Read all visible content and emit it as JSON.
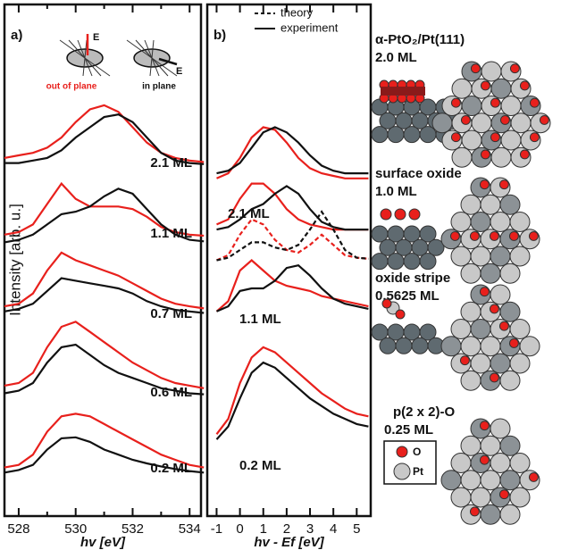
{
  "y_label": "Intensity [arb. u.]",
  "chart_data": [
    {
      "type": "line",
      "panel_label": "a)",
      "x_label": "hv [eV]",
      "x": [
        527.5,
        528,
        528.5,
        529,
        529.5,
        530,
        530.5,
        531,
        531.5,
        532,
        532.5,
        533,
        533.5,
        534,
        534.5
      ],
      "xlim": [
        527.5,
        534.4
      ],
      "ylim": [
        0,
        100
      ],
      "xticks": [
        528,
        530,
        532,
        534
      ],
      "xminorticks": [
        529,
        531,
        533
      ],
      "inset": {
        "field_label": "E",
        "out_of_plane": "out of plane",
        "in_plane": "in plane"
      },
      "annotations": [
        "2.1 ML",
        "1.1 ML",
        "0.7 ML",
        "0.6 ML",
        "0.2 ML"
      ],
      "series": [
        {
          "color": "#e8201c",
          "values": [
            70,
            70.5,
            71,
            72,
            74,
            77,
            79.5,
            80.3,
            79,
            76,
            73,
            71,
            70,
            69.5,
            69.2
          ]
        },
        {
          "color": "#111111",
          "values": [
            69,
            69,
            69.5,
            70,
            71.5,
            74,
            76,
            78,
            78.5,
            77,
            74,
            71,
            69.5,
            69,
            68.8
          ]
        },
        {
          "color": "#e8201c",
          "values": [
            55,
            55.5,
            57,
            61,
            65,
            62,
            60.5,
            60.5,
            60.5,
            60,
            58.5,
            56.5,
            55.5,
            55,
            54.8
          ]
        },
        {
          "color": "#111111",
          "values": [
            53.5,
            54,
            55,
            57,
            59,
            59.5,
            60.5,
            62.5,
            64,
            63,
            60,
            57,
            55,
            54,
            53.7
          ]
        },
        {
          "color": "#e8201c",
          "values": [
            41,
            41.5,
            43.5,
            48,
            51.5,
            50,
            49,
            48,
            47,
            45.5,
            44,
            42.5,
            41.5,
            41,
            40.6
          ]
        },
        {
          "color": "#111111",
          "values": [
            40,
            40.5,
            41.5,
            44,
            46.5,
            46,
            45.5,
            45,
            44.5,
            43.5,
            42,
            41,
            40.3,
            40,
            39.7
          ]
        },
        {
          "color": "#e8201c",
          "values": [
            25.5,
            26,
            28,
            33,
            37,
            38,
            36,
            34,
            32,
            30,
            28.5,
            27,
            26,
            25.5,
            25
          ]
        },
        {
          "color": "#111111",
          "values": [
            24,
            24.5,
            26,
            30,
            33,
            33.5,
            31.5,
            29.5,
            28,
            27,
            26,
            25,
            24.5,
            24,
            23.8
          ]
        },
        {
          "color": "#e8201c",
          "values": [
            9.5,
            10,
            12,
            16.5,
            19.5,
            20,
            19.5,
            18,
            16.5,
            15,
            13.5,
            12,
            11,
            10,
            9.5
          ]
        },
        {
          "color": "#111111",
          "values": [
            8.5,
            9,
            10,
            13,
            15.2,
            15.4,
            14.5,
            13,
            12,
            11,
            10.3,
            9.7,
            9.2,
            8.8,
            8.5
          ]
        }
      ]
    },
    {
      "type": "line",
      "panel_label": "b)",
      "x_label": "hv - Ef [eV]",
      "x": [
        -1,
        -0.5,
        0,
        0.5,
        1,
        1.5,
        2,
        2.5,
        3,
        3.5,
        4,
        4.5,
        5,
        5.5
      ],
      "xlim": [
        -1.4,
        5.6
      ],
      "ylim": [
        0,
        100
      ],
      "xticks": [
        -1,
        0,
        1,
        2,
        3,
        4,
        5
      ],
      "legend": [
        {
          "label": "theory",
          "dashed": true
        },
        {
          "label": "experiment",
          "dashed": false
        }
      ],
      "annotations": [
        "2.1 ML",
        "1.1 ML",
        "0.2 ML"
      ],
      "series": [
        {
          "color": "#e8201c",
          "dashed": false,
          "values": [
            66,
            67,
            70,
            74,
            76,
            75.5,
            73,
            70,
            68,
            67,
            66.5,
            66,
            66,
            66
          ]
        },
        {
          "color": "#111111",
          "dashed": false,
          "values": [
            67,
            67.5,
            69,
            72,
            75,
            76,
            75,
            73,
            70.5,
            68.5,
            67.5,
            67,
            67,
            67
          ]
        },
        {
          "color": "#e8201c",
          "dashed": false,
          "values": [
            57,
            58,
            62,
            65,
            65,
            63,
            60,
            58,
            57,
            56.5,
            56,
            56,
            56,
            56
          ]
        },
        {
          "color": "#111111",
          "dashed": false,
          "values": [
            56,
            56.5,
            58,
            60,
            61,
            63,
            64.5,
            63,
            60,
            57.5,
            56.5,
            56,
            56,
            56
          ]
        },
        {
          "color": "#e8201c",
          "dashed": true,
          "values": [
            50,
            51,
            55,
            58,
            57,
            54,
            52,
            51.5,
            53,
            55,
            53,
            51,
            50.5,
            50.3
          ]
        },
        {
          "color": "#111111",
          "dashed": true,
          "values": [
            50,
            50.5,
            52,
            53.5,
            53.5,
            52.5,
            52,
            53,
            56,
            59.5,
            56,
            52,
            50.5,
            50.3
          ]
        },
        {
          "color": "#e8201c",
          "dashed": false,
          "values": [
            40,
            42,
            48,
            50,
            48,
            46,
            45,
            44.5,
            44,
            43,
            42.5,
            42,
            41.5,
            41
          ]
        },
        {
          "color": "#111111",
          "dashed": false,
          "values": [
            40,
            41,
            44,
            44.5,
            44.5,
            46,
            48.5,
            49,
            47,
            44.5,
            42.5,
            41.5,
            41,
            40.5
          ]
        },
        {
          "color": "#e8201c",
          "dashed": false,
          "values": [
            16,
            19,
            26,
            31,
            33,
            32,
            30,
            28,
            26,
            24,
            22.5,
            21,
            20,
            19.5
          ]
        },
        {
          "color": "#111111",
          "dashed": false,
          "values": [
            15,
            17.5,
            23,
            28,
            30,
            29,
            27,
            25,
            23,
            21.5,
            20,
            19,
            18,
            17.5
          ]
        }
      ]
    }
  ],
  "structures": [
    {
      "name": "α-PtO₂/Pt(111)",
      "coverage": "2.0 ML"
    },
    {
      "name": "surface oxide",
      "coverage": "1.0 ML"
    },
    {
      "name": "oxide stripe",
      "coverage": "0.5625 ML"
    },
    {
      "name": "p(2 x 2)-O",
      "coverage": "0.25 ML"
    }
  ],
  "key": [
    "O",
    "Pt"
  ]
}
